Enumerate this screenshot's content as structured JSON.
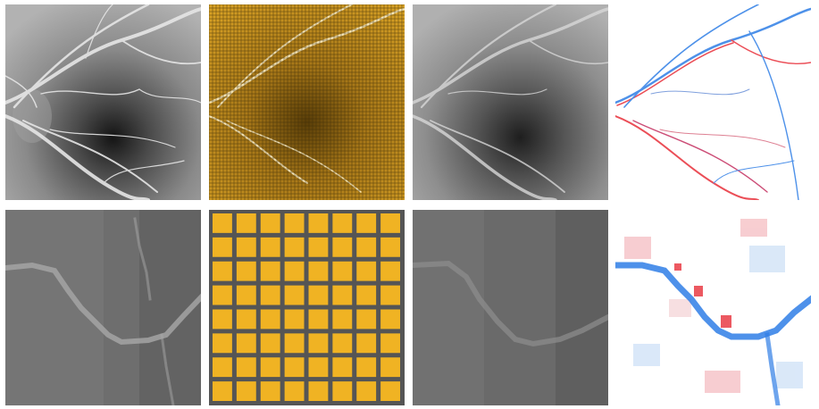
{
  "figure": {
    "layout": "grid",
    "rows": 2,
    "columns": 4,
    "colors": {
      "background": "#ffffff",
      "grid_overlay": "#f0b323",
      "positive": "#e8303a",
      "negative": "#2f7ee6",
      "neutral": "#ffffff"
    },
    "panels": [
      {
        "kind": "fundus-angiogram",
        "zoom": "full",
        "overlay": "none"
      },
      {
        "kind": "fundus-angiogram",
        "zoom": "full",
        "overlay": "patch-grid"
      },
      {
        "kind": "fundus-angiogram",
        "zoom": "full",
        "overlay": "none",
        "variant": "reconstruction"
      },
      {
        "kind": "difference-map",
        "zoom": "full",
        "colormap": "red-white-blue"
      },
      {
        "kind": "fundus-angiogram",
        "zoom": "crop",
        "overlay": "none"
      },
      {
        "kind": "fundus-angiogram",
        "zoom": "crop",
        "overlay": "patch-grid",
        "grid_cells": [
          8,
          8
        ]
      },
      {
        "kind": "fundus-angiogram",
        "zoom": "crop",
        "overlay": "none",
        "variant": "reconstruction"
      },
      {
        "kind": "difference-map",
        "zoom": "crop",
        "colormap": "red-white-blue"
      }
    ]
  }
}
